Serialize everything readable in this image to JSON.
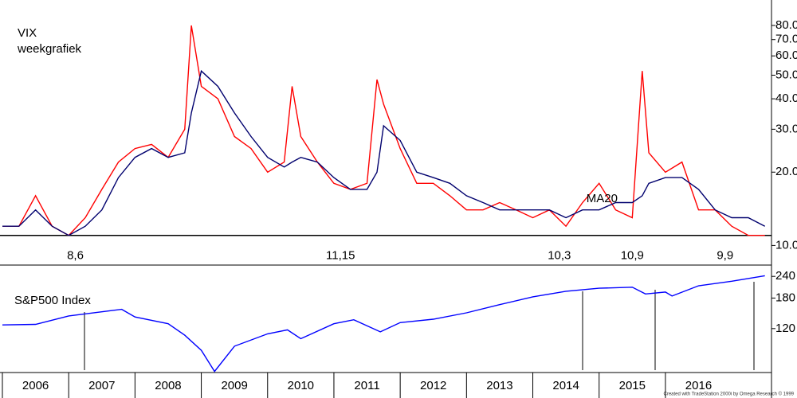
{
  "chart_data": [
    {
      "type": "line",
      "title": "VIX",
      "subtitle": "weekgrafiek",
      "log_scale": true,
      "xlim": [
        2006,
        2017.6
      ],
      "ylim": [
        8.5,
        98
      ],
      "yticks": [
        {
          "value": 10,
          "label": "10.0"
        },
        {
          "value": 20,
          "label": "20.0"
        },
        {
          "value": 30,
          "label": "30.0"
        },
        {
          "value": 40,
          "label": "40.0"
        },
        {
          "value": 50,
          "label": "50.0"
        },
        {
          "value": 60,
          "label": "60.0"
        },
        {
          "value": 70,
          "label": "70.0"
        },
        {
          "value": 80,
          "label": "80.0"
        }
      ],
      "x": [
        2006.0,
        2006.25,
        2006.5,
        2006.75,
        2007.0,
        2007.25,
        2007.5,
        2007.75,
        2008.0,
        2008.25,
        2008.5,
        2008.75,
        2008.85,
        2009.0,
        2009.25,
        2009.5,
        2009.75,
        2010.0,
        2010.25,
        2010.37,
        2010.5,
        2010.75,
        2011.0,
        2011.25,
        2011.5,
        2011.65,
        2011.75,
        2012.0,
        2012.25,
        2012.5,
        2012.75,
        2013.0,
        2013.25,
        2013.5,
        2013.75,
        2014.0,
        2014.25,
        2014.5,
        2014.75,
        2015.0,
        2015.25,
        2015.5,
        2015.65,
        2015.75,
        2016.0,
        2016.25,
        2016.5,
        2016.75,
        2017.0,
        2017.25,
        2017.5
      ],
      "series": [
        {
          "color": "#ff0000",
          "values": [
            12,
            12,
            16,
            12,
            11,
            13,
            17,
            22,
            25,
            26,
            23,
            30,
            80,
            45,
            40,
            28,
            25,
            20,
            22,
            45,
            28,
            22,
            18,
            17,
            18,
            48,
            38,
            25,
            18,
            18,
            16,
            14,
            14,
            15,
            14,
            13,
            14,
            12,
            15,
            18,
            14,
            13,
            52,
            24,
            20,
            22,
            14,
            14,
            12,
            11,
            11
          ]
        },
        {
          "name": "MA20",
          "color": "#00006e",
          "values": [
            12,
            12,
            14,
            12,
            11,
            12,
            14,
            19,
            23,
            25,
            23,
            24,
            35,
            52,
            45,
            35,
            28,
            23,
            21,
            22,
            23,
            22,
            19,
            17,
            17,
            20,
            31,
            27,
            20,
            19,
            18,
            16,
            15,
            14,
            14,
            14,
            14,
            13,
            14,
            14,
            15,
            15,
            16,
            18,
            19,
            19,
            17,
            14,
            13,
            13,
            12
          ]
        }
      ],
      "hline": 11,
      "annotations": [
        {
          "text": "8,6",
          "x": 2007.1
        },
        {
          "text": "11,15",
          "x": 2011.1
        },
        {
          "text": "10,3",
          "x": 2014.4
        },
        {
          "text": "10,9",
          "x": 2015.5
        },
        {
          "text": "9,9",
          "x": 2016.9
        }
      ]
    },
    {
      "type": "line",
      "title": "S&P500 Index",
      "log_scale": true,
      "xlim": [
        2006,
        2017.6
      ],
      "ylim": [
        67,
        259
      ],
      "xticks": [
        2006,
        2007,
        2008,
        2009,
        2010,
        2011,
        2012,
        2013,
        2014,
        2015,
        2016
      ],
      "yticks": [
        120,
        180,
        240
      ],
      "x": [
        2006.0,
        2006.5,
        2007.0,
        2007.5,
        2007.8,
        2008.0,
        2008.5,
        2008.75,
        2009.0,
        2009.2,
        2009.5,
        2010.0,
        2010.3,
        2010.5,
        2011.0,
        2011.3,
        2011.7,
        2012.0,
        2012.5,
        2013.0,
        2013.5,
        2014.0,
        2014.5,
        2015.0,
        2015.5,
        2015.7,
        2016.0,
        2016.1,
        2016.5,
        2017.0,
        2017.5
      ],
      "series": [
        {
          "color": "#0000ff",
          "values": [
            126,
            127,
            142,
            150,
            155,
            140,
            128,
            110,
            90,
            68,
            95,
            112,
            118,
            105,
            128,
            135,
            115,
            130,
            136,
            148,
            165,
            183,
            197,
            205,
            208,
            190,
            195,
            185,
            212,
            225,
            242
          ]
        }
      ]
    }
  ],
  "credit": "Created with TradeStation 2000i by Omega Research © 1999"
}
